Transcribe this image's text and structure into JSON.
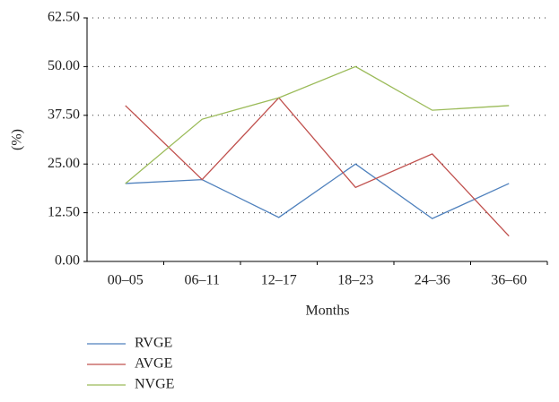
{
  "chart_data": {
    "type": "line",
    "x_label": "Months",
    "y_label": "(%)",
    "categories": [
      "00–05",
      "06–11",
      "12–17",
      "18–23",
      "24–36",
      "36–60"
    ],
    "series": [
      {
        "name": "RVGE",
        "color": "#4f81bd",
        "values": [
          20,
          21,
          11.3,
          25,
          11,
          20
        ]
      },
      {
        "name": "AVGE",
        "color": "#c0504d",
        "values": [
          40,
          21,
          42,
          19,
          27.6,
          6.5
        ]
      },
      {
        "name": "NVGE",
        "color": "#9bbb59",
        "values": [
          20,
          36.5,
          42,
          50,
          38.8,
          40
        ]
      }
    ],
    "ylim": [
      0,
      62.5
    ],
    "yticks": [
      {
        "value": 0,
        "label": "0.00"
      },
      {
        "value": 12.5,
        "label": "12.50"
      },
      {
        "value": 25,
        "label": "25.00"
      },
      {
        "value": 37.5,
        "label": "37.50"
      },
      {
        "value": 50,
        "label": "50.00"
      },
      {
        "value": 62.5,
        "label": "62.50"
      }
    ],
    "grid": true
  }
}
